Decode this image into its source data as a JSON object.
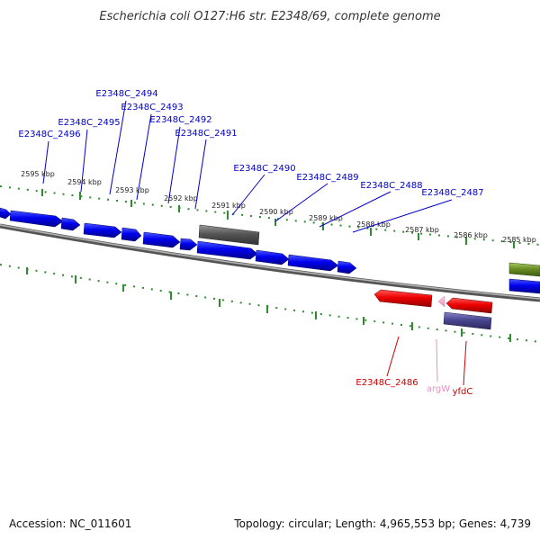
{
  "title": "Escherichia coli O127:H6 str. E2348/69, complete genome",
  "footer": {
    "accession": "Accession: NC_011601",
    "summary": "Topology: circular; Length: 4,965,553 bp; Genes: 4,739"
  },
  "colors": {
    "forward_gene": "#0000ee",
    "reverse_gene": "#ee0000",
    "pseudo_gene": "#555555",
    "trna": "#f2a0c8",
    "misc_reverse": "#4a4690",
    "misc_forward": "#6b8e23",
    "tick": "#2e8b2e",
    "backbone": "#777777",
    "label_forward": "#0000cc",
    "label_reverse": "#cc0000",
    "label_trna": "#e890c0"
  },
  "ticks": [
    "2595 kbp",
    "2594 kbp",
    "2593 kbp",
    "2592 kbp",
    "2591 kbp",
    "2590 kbp",
    "2589 kbp",
    "2588 kbp",
    "2587 kbp",
    "2586 kbp",
    "2585 kbp"
  ],
  "genes_forward_labels": [
    "E2348C_2494",
    "E2348C_2493",
    "E2348C_2495",
    "E2348C_2492",
    "E2348C_2496",
    "E2348C_2491",
    "E2348C_2490",
    "E2348C_2489",
    "E2348C_2488",
    "E2348C_2487"
  ],
  "genes_reverse_labels": [
    "E2348C_2486",
    "argW",
    "yfdC"
  ]
}
